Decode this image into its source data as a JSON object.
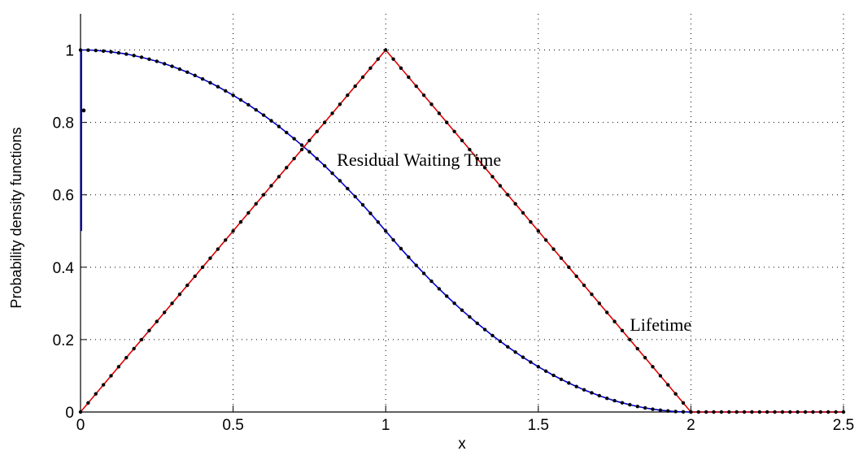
{
  "chart_data": {
    "type": "line",
    "title": "",
    "xlabel": "x",
    "ylabel": "Probability density functions",
    "xlim": [
      0,
      2.5
    ],
    "ylim": [
      0,
      1.1
    ],
    "xticks": [
      0,
      0.5,
      1,
      1.5,
      2,
      2.5
    ],
    "xtick_labels": [
      "0",
      "0.5",
      "1",
      "1.5",
      "2",
      "2.5"
    ],
    "yticks": [
      0,
      0.2,
      0.4,
      0.6,
      0.8,
      1
    ],
    "ytick_labels": [
      "0",
      "0.2",
      "0.4",
      "0.6",
      "0.8",
      "1"
    ],
    "grid": true,
    "grid_style": "dotted",
    "series": [
      {
        "name": "Residual Waiting Time",
        "color": "#0000cc",
        "x": [
          0,
          0.025,
          0.05,
          0.1,
          0.15,
          0.2,
          0.25,
          0.3,
          0.35,
          0.4,
          0.45,
          0.5,
          0.55,
          0.6,
          0.65,
          0.7,
          0.75,
          0.8,
          0.85,
          0.9,
          0.95,
          1.0,
          1.05,
          1.1,
          1.15,
          1.2,
          1.25,
          1.3,
          1.35,
          1.4,
          1.45,
          1.5,
          1.55,
          1.6,
          1.65,
          1.7,
          1.75,
          1.8,
          1.85,
          1.9,
          1.95,
          2.0,
          2.5
        ],
        "y": [
          1.0,
          1.0,
          0.999,
          0.995,
          0.989,
          0.98,
          0.969,
          0.955,
          0.939,
          0.92,
          0.899,
          0.875,
          0.849,
          0.82,
          0.789,
          0.755,
          0.719,
          0.68,
          0.639,
          0.595,
          0.549,
          0.5,
          0.451,
          0.405,
          0.361,
          0.32,
          0.281,
          0.245,
          0.211,
          0.18,
          0.151,
          0.125,
          0.101,
          0.08,
          0.061,
          0.045,
          0.031,
          0.02,
          0.011,
          0.005,
          0.001,
          0.0,
          0.0
        ]
      },
      {
        "name": "Lifetime",
        "color": "#dd0000",
        "x": [
          0,
          1,
          2,
          2.5
        ],
        "y": [
          0,
          1,
          0,
          0
        ]
      }
    ],
    "initial_spike": {
      "x": 0,
      "y_from": 0.5,
      "y_to": 1.0,
      "color": "#0000cc"
    },
    "outlier_point": {
      "x": 0.005,
      "y": 0.833
    },
    "annotations": [
      {
        "text": "Residual Waiting Time",
        "x": 0.84,
        "y": 0.68
      },
      {
        "text": "Lifetime",
        "x": 1.8,
        "y": 0.225
      }
    ],
    "sample_points": {
      "step": 0.025,
      "color": "#000000"
    }
  }
}
